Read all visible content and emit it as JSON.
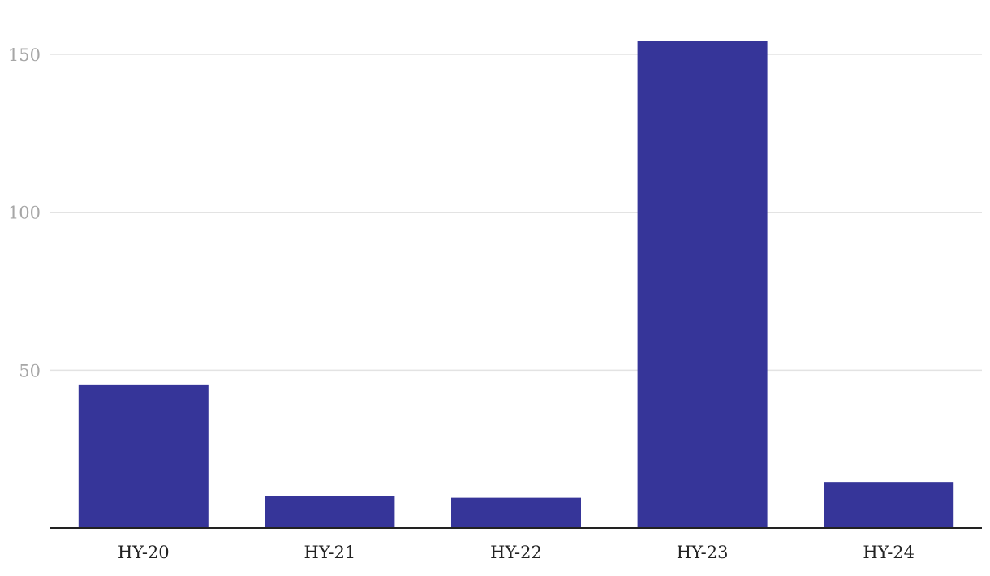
{
  "chart_data": {
    "type": "bar",
    "title": "",
    "xlabel": "",
    "ylabel": "",
    "categories": [
      "HY-20",
      "HY-21",
      "HY-22",
      "HY-23",
      "HY-24"
    ],
    "values": [
      45.5,
      10.2,
      9.6,
      154.2,
      14.6
    ],
    "ylim": [
      0,
      150
    ],
    "yticks": [
      50,
      100,
      150
    ],
    "grid": true,
    "bar_color": "#363599",
    "grid_color": "#e3e3e3",
    "axis_color": "#222222",
    "y_tick_color": "#a6a6a6",
    "x_tick_color": "#222222"
  }
}
